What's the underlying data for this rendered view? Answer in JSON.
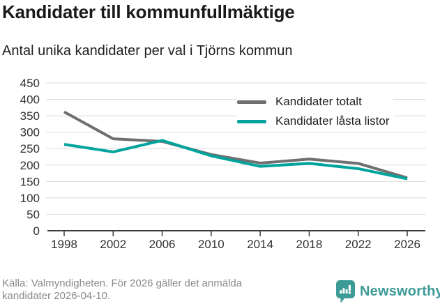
{
  "header": {
    "title": "Kandidater till kommunfullmäktige",
    "subtitle": "Antal unika kandidater per val i Tjörns kommun"
  },
  "chart_data": {
    "type": "line",
    "x": [
      1998,
      2002,
      2006,
      2010,
      2014,
      2018,
      2022,
      2026
    ],
    "series": [
      {
        "name": "Kandidater totalt",
        "color": "#6f6f6f",
        "values": [
          362,
          280,
          272,
          232,
          206,
          218,
          205,
          161
        ]
      },
      {
        "name": "Kandidater låsta listor",
        "color": "#00a49c",
        "values": [
          263,
          240,
          275,
          228,
          196,
          205,
          189,
          158
        ]
      }
    ],
    "title": "Kandidater till kommunfullmäktige",
    "subtitle": "Antal unika kandidater per val i Tjörns kommun",
    "xlabel": "",
    "ylabel": "",
    "ylim": [
      0,
      450
    ],
    "ytick_step": 50,
    "yticks": [
      0,
      50,
      100,
      150,
      200,
      250,
      300,
      350,
      400,
      450
    ],
    "grid": true,
    "legend_position": "top-right-inside"
  },
  "footer": {
    "source": "Källa: Valmyndigheten. För 2026 gäller det anmälda kandidater 2026-04-10.",
    "brand": "Newsworthy"
  },
  "colors": {
    "axis_text": "#333333",
    "gridline": "#dcdcdc",
    "axis_line": "#3a3a3a",
    "title_text": "#1a1a1a",
    "footer_text": "#8a8a8a",
    "brand_teal": "#3d9b97"
  }
}
